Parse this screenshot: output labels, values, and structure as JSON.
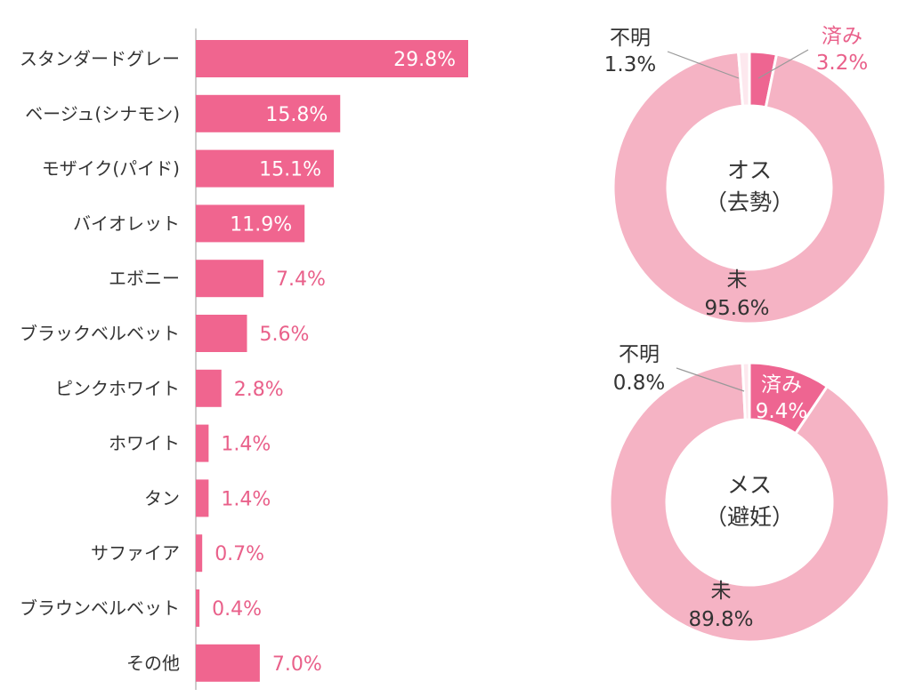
{
  "colors": {
    "bar": "#f0658f",
    "done": "#ee6591",
    "not": "#f5b3c4",
    "unknown": "#fde8ee",
    "label_pink": "#e9608a",
    "axis": "#bbbbbb"
  },
  "chart_data": [
    {
      "type": "bar",
      "orientation": "horizontal",
      "categories": [
        "スタンダードグレー",
        "ベージュ(シナモン)",
        "モザイク(パイド)",
        "バイオレット",
        "エボニー",
        "ブラックベルベット",
        "ピンクホワイト",
        "ホワイト",
        "タン",
        "サファイア",
        "ブラウンベルベット",
        "その他"
      ],
      "values": [
        29.8,
        15.8,
        15.1,
        11.9,
        7.4,
        5.6,
        2.8,
        1.4,
        1.4,
        0.7,
        0.4,
        7.0
      ],
      "value_labels": [
        "29.8%",
        "15.8%",
        "15.1%",
        "11.9%",
        "7.4%",
        "5.6%",
        "2.8%",
        "1.4%",
        "1.4%",
        "0.7%",
        "0.4%",
        "7.0%"
      ],
      "unit": "%",
      "xlim": [
        0,
        40
      ],
      "grid": false
    },
    {
      "type": "pie",
      "donut": true,
      "center_label": [
        "オス",
        "（去勢）"
      ],
      "slices": [
        {
          "name": "済み",
          "value": 3.2,
          "label": "3.2%"
        },
        {
          "name": "未",
          "value": 95.6,
          "label": "95.6%"
        },
        {
          "name": "不明",
          "value": 1.3,
          "label": "1.3%"
        }
      ]
    },
    {
      "type": "pie",
      "donut": true,
      "center_label": [
        "メス",
        "（避妊）"
      ],
      "slices": [
        {
          "name": "済み",
          "value": 9.4,
          "label": "9.4%"
        },
        {
          "name": "未",
          "value": 89.8,
          "label": "89.8%"
        },
        {
          "name": "不明",
          "value": 0.8,
          "label": "0.8%"
        }
      ]
    }
  ]
}
